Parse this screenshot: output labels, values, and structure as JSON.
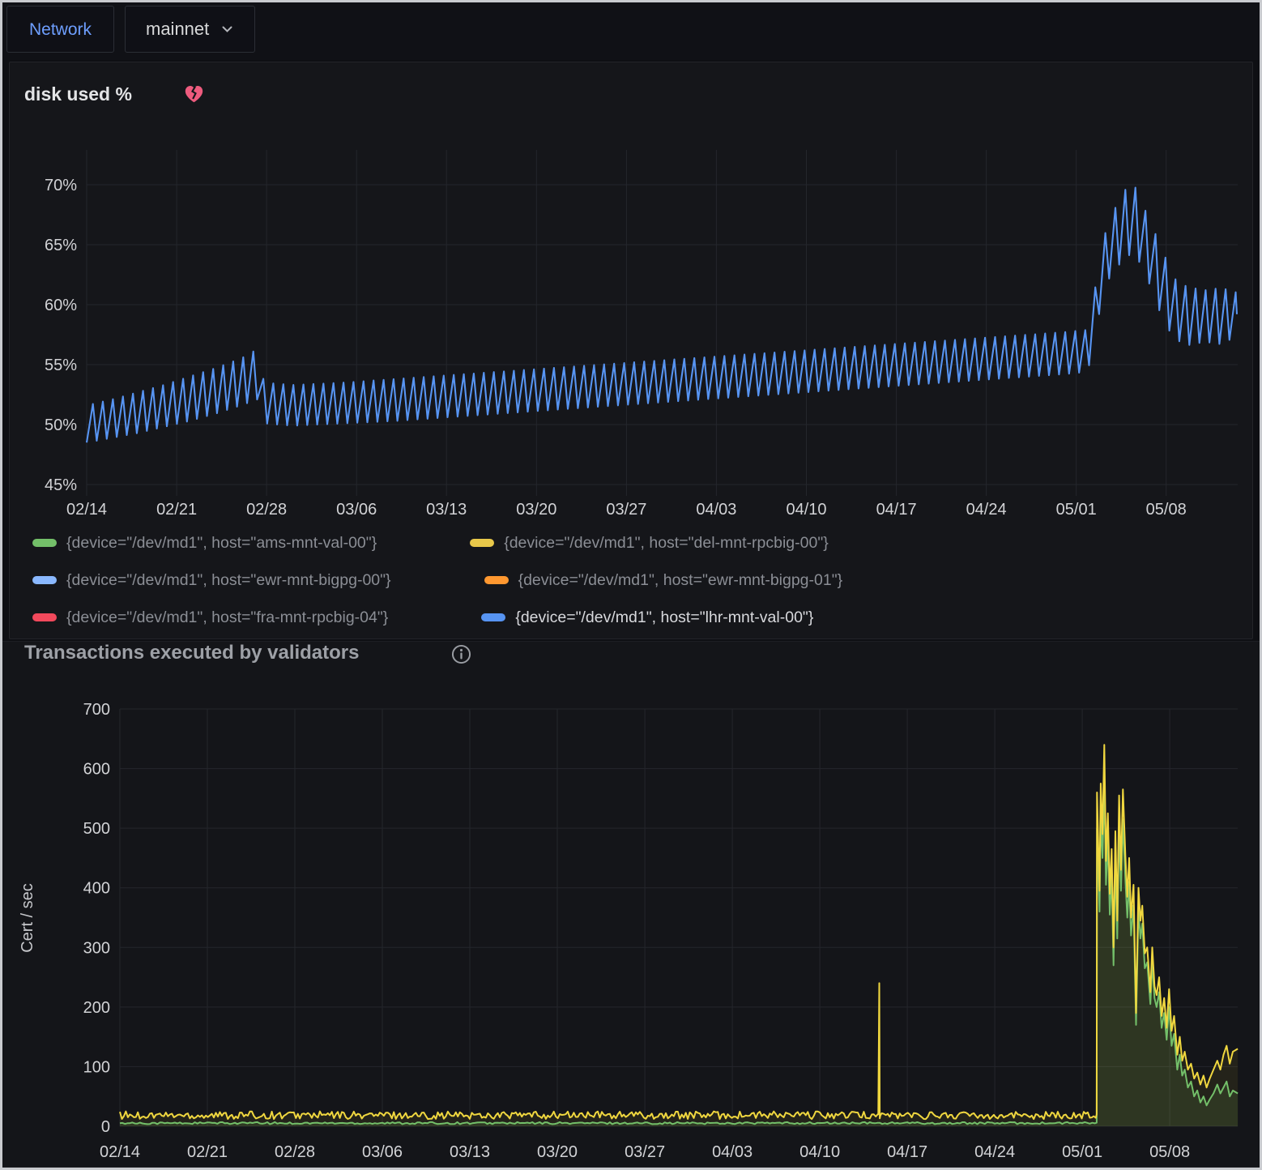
{
  "topbar": {
    "network_label": "Network",
    "network_value": "mainnet"
  },
  "chart_data": [
    {
      "id": "disk_used",
      "type": "line",
      "title": "disk used %",
      "x_ticks": [
        {
          "day": 0,
          "label": "02/14"
        },
        {
          "day": 7,
          "label": "02/21"
        },
        {
          "day": 14,
          "label": "02/28"
        },
        {
          "day": 21,
          "label": "03/06"
        },
        {
          "day": 28,
          "label": "03/13"
        },
        {
          "day": 35,
          "label": "03/20"
        },
        {
          "day": 42,
          "label": "03/27"
        },
        {
          "day": 49,
          "label": "04/03"
        },
        {
          "day": 56,
          "label": "04/10"
        },
        {
          "day": 63,
          "label": "04/17"
        },
        {
          "day": 70,
          "label": "04/24"
        },
        {
          "day": 77,
          "label": "05/01"
        },
        {
          "day": 84,
          "label": "05/08"
        }
      ],
      "x_range_days": [
        0,
        89.5
      ],
      "y_ticks": [
        {
          "value": 45,
          "label": "45%"
        },
        {
          "value": 50,
          "label": "50%"
        },
        {
          "value": 55,
          "label": "55%"
        },
        {
          "value": 60,
          "label": "60%"
        },
        {
          "value": 65,
          "label": "65%"
        },
        {
          "value": 70,
          "label": "70%"
        }
      ],
      "ylim": [
        44,
        72.6
      ],
      "grid": true,
      "series_color": "#5794f2",
      "sawtooth": {
        "period_days": 0.78,
        "rise_fraction": 0.62,
        "envelope": [
          [
            0,
            48.5,
            51.6
          ],
          [
            2,
            48.9,
            52.1
          ],
          [
            4,
            49.3,
            52.7
          ],
          [
            6,
            49.8,
            53.3
          ],
          [
            8,
            50.3,
            54.0
          ],
          [
            10,
            50.9,
            54.7
          ],
          [
            12,
            51.6,
            55.5
          ],
          [
            13.3,
            52.1,
            56.3
          ],
          [
            13.8,
            50.1,
            53.5
          ],
          [
            16,
            49.9,
            53.3
          ],
          [
            20,
            50.1,
            53.5
          ],
          [
            24,
            50.3,
            53.8
          ],
          [
            28,
            50.6,
            54.1
          ],
          [
            32,
            50.9,
            54.4
          ],
          [
            36,
            51.2,
            54.7
          ],
          [
            40,
            51.5,
            55.0
          ],
          [
            44,
            51.8,
            55.3
          ],
          [
            48,
            52.1,
            55.6
          ],
          [
            52,
            52.4,
            55.9
          ],
          [
            56,
            52.7,
            56.2
          ],
          [
            60,
            53.0,
            56.5
          ],
          [
            64,
            53.3,
            56.8
          ],
          [
            68,
            53.6,
            57.1
          ],
          [
            72,
            53.9,
            57.4
          ],
          [
            76,
            54.2,
            57.7
          ],
          [
            77.9,
            54.4,
            57.9
          ],
          [
            79.2,
            61.5,
            65.8
          ],
          [
            80.0,
            63.0,
            68.0
          ],
          [
            81.3,
            64.3,
            70.5
          ],
          [
            82.2,
            63.2,
            68.3
          ],
          [
            83.0,
            60.8,
            66.3
          ],
          [
            83.8,
            58.6,
            64.3
          ],
          [
            84.6,
            57.2,
            62.2
          ],
          [
            85.6,
            56.6,
            61.5
          ],
          [
            87.0,
            56.9,
            61.2
          ],
          [
            88.3,
            56.7,
            61.4
          ],
          [
            89.5,
            57.4,
            61.0
          ]
        ]
      },
      "legend": [
        {
          "color": "#73bf69",
          "label": "{device=\"/dev/md1\", host=\"ams-mnt-val-00\"}",
          "selected": false
        },
        {
          "color": "#e8c84a",
          "label": "{device=\"/dev/md1\", host=\"del-mnt-rpcbig-00\"}",
          "selected": false
        },
        {
          "color": "#8ab8ff",
          "label": "{device=\"/dev/md1\", host=\"ewr-mnt-bigpg-00\"}",
          "selected": false
        },
        {
          "color": "#ff9830",
          "label": "{device=\"/dev/md1\", host=\"ewr-mnt-bigpg-01\"}",
          "selected": false
        },
        {
          "color": "#f2495c",
          "label": "{device=\"/dev/md1\", host=\"fra-mnt-rpcbig-04\"}",
          "selected": false
        },
        {
          "color": "#5794f2",
          "label": "{device=\"/dev/md1\", host=\"lhr-mnt-val-00\"}",
          "selected": true
        }
      ]
    },
    {
      "id": "validators_tx",
      "type": "line",
      "title": "Transactions executed by validators",
      "ylabel": "Cert / sec",
      "x_ticks": [
        {
          "day": 0,
          "label": "02/14"
        },
        {
          "day": 7,
          "label": "02/21"
        },
        {
          "day": 14,
          "label": "02/28"
        },
        {
          "day": 21,
          "label": "03/06"
        },
        {
          "day": 28,
          "label": "03/13"
        },
        {
          "day": 35,
          "label": "03/20"
        },
        {
          "day": 42,
          "label": "03/27"
        },
        {
          "day": 49,
          "label": "04/03"
        },
        {
          "day": 56,
          "label": "04/10"
        },
        {
          "day": 63,
          "label": "04/17"
        },
        {
          "day": 70,
          "label": "04/24"
        },
        {
          "day": 77,
          "label": "05/01"
        },
        {
          "day": 84,
          "label": "05/08"
        }
      ],
      "x_range_days": [
        0,
        89.44
      ],
      "y_ticks": [
        {
          "value": 0,
          "label": "0"
        },
        {
          "value": 100,
          "label": "100"
        },
        {
          "value": 200,
          "label": "200"
        },
        {
          "value": 300,
          "label": "300"
        },
        {
          "value": 400,
          "label": "400"
        },
        {
          "value": 500,
          "label": "500"
        },
        {
          "value": 600,
          "label": "600"
        },
        {
          "value": 700,
          "label": "700"
        }
      ],
      "ylim": [
        0,
        733
      ],
      "grid": true,
      "series": [
        {
          "name": "green",
          "color": "#73bf69",
          "fill": "rgba(115,191,105,0.12)",
          "baseline": {
            "from": 0,
            "to": 78.12,
            "step": 0.2,
            "base": 3.5,
            "amp": 3.5
          },
          "spike": [],
          "surge": [
            [
              78.15,
              6
            ],
            [
              78.18,
              500
            ],
            [
              78.28,
              430
            ],
            [
              78.38,
              360
            ],
            [
              78.48,
              520
            ],
            [
              78.62,
              450
            ],
            [
              78.76,
              575
            ],
            [
              78.9,
              405
            ],
            [
              79.05,
              480
            ],
            [
              79.2,
              355
            ],
            [
              79.35,
              425
            ],
            [
              79.5,
              270
            ],
            [
              79.65,
              450
            ],
            [
              79.8,
              315
            ],
            [
              79.95,
              505
            ],
            [
              80.1,
              395
            ],
            [
              80.25,
              515
            ],
            [
              80.45,
              415
            ],
            [
              80.6,
              350
            ],
            [
              80.75,
              410
            ],
            [
              80.9,
              320
            ],
            [
              81.1,
              370
            ],
            [
              81.3,
              170
            ],
            [
              81.5,
              365
            ],
            [
              81.65,
              315
            ],
            [
              81.8,
              340
            ],
            [
              82.0,
              265
            ],
            [
              82.2,
              275
            ],
            [
              82.45,
              205
            ],
            [
              82.6,
              275
            ],
            [
              82.78,
              215
            ],
            [
              82.95,
              200
            ],
            [
              83.15,
              225
            ],
            [
              83.35,
              165
            ],
            [
              83.55,
              190
            ],
            [
              83.75,
              145
            ],
            [
              83.95,
              200
            ],
            [
              84.15,
              135
            ],
            [
              84.35,
              155
            ],
            [
              84.6,
              95
            ],
            [
              84.8,
              120
            ],
            [
              85.0,
              85
            ],
            [
              85.2,
              95
            ],
            [
              85.45,
              65
            ],
            [
              85.7,
              75
            ],
            [
              85.95,
              50
            ],
            [
              86.2,
              60
            ],
            [
              86.45,
              40
            ],
            [
              86.7,
              50
            ],
            [
              86.95,
              35
            ],
            [
              87.2,
              45
            ],
            [
              87.5,
              55
            ],
            [
              87.8,
              70
            ],
            [
              88.05,
              55
            ],
            [
              88.3,
              65
            ],
            [
              88.55,
              75
            ],
            [
              88.8,
              50
            ],
            [
              89.05,
              60
            ],
            [
              89.44,
              55
            ]
          ]
        },
        {
          "name": "yellow",
          "color": "#f0d73f",
          "fill": "rgba(250,222,42,0.07)",
          "baseline": {
            "from": 0,
            "to": 78.12,
            "step": 0.16,
            "base": 12,
            "amp": 13
          },
          "spike": [
            [
              60.68,
              20
            ],
            [
              60.76,
              240
            ],
            [
              60.84,
              18
            ]
          ],
          "surge": [
            [
              78.15,
              20
            ],
            [
              78.18,
              560
            ],
            [
              78.28,
              470
            ],
            [
              78.38,
              395
            ],
            [
              78.48,
              575
            ],
            [
              78.62,
              490
            ],
            [
              78.76,
              640
            ],
            [
              78.9,
              445
            ],
            [
              79.05,
              525
            ],
            [
              79.2,
              390
            ],
            [
              79.35,
              465
            ],
            [
              79.5,
              300
            ],
            [
              79.65,
              495
            ],
            [
              79.8,
              345
            ],
            [
              79.95,
              555
            ],
            [
              80.1,
              430
            ],
            [
              80.25,
              565
            ],
            [
              80.45,
              455
            ],
            [
              80.6,
              385
            ],
            [
              80.75,
              450
            ],
            [
              80.9,
              350
            ],
            [
              81.1,
              405
            ],
            [
              81.3,
              190
            ],
            [
              81.5,
              400
            ],
            [
              81.65,
              345
            ],
            [
              81.8,
              370
            ],
            [
              82.0,
              290
            ],
            [
              82.2,
              300
            ],
            [
              82.45,
              225
            ],
            [
              82.6,
              300
            ],
            [
              82.78,
              235
            ],
            [
              82.95,
              220
            ],
            [
              83.15,
              250
            ],
            [
              83.35,
              185
            ],
            [
              83.55,
              215
            ],
            [
              83.75,
              165
            ],
            [
              83.95,
              230
            ],
            [
              84.15,
              160
            ],
            [
              84.35,
              185
            ],
            [
              84.6,
              120
            ],
            [
              84.8,
              150
            ],
            [
              85.0,
              110
            ],
            [
              85.2,
              125
            ],
            [
              85.45,
              95
            ],
            [
              85.7,
              105
            ],
            [
              85.95,
              80
            ],
            [
              86.2,
              90
            ],
            [
              86.45,
              70
            ],
            [
              86.7,
              85
            ],
            [
              86.95,
              65
            ],
            [
              87.2,
              80
            ],
            [
              87.5,
              95
            ],
            [
              87.8,
              110
            ],
            [
              88.05,
              95
            ],
            [
              88.3,
              120
            ],
            [
              88.55,
              135
            ],
            [
              88.8,
              105
            ],
            [
              89.05,
              125
            ],
            [
              89.44,
              130
            ]
          ]
        }
      ]
    }
  ]
}
